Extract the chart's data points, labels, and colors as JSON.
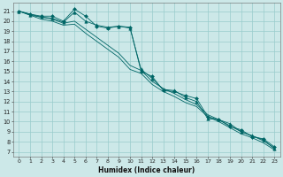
{
  "xlabel": "Humidex (Indice chaleur)",
  "ylabel": "",
  "bg_color": "#cce8e8",
  "grid_color": "#99cccc",
  "line_color": "#006666",
  "xlim": [
    -0.5,
    23.5
  ],
  "ylim": [
    6.5,
    21.8
  ],
  "yticks": [
    7,
    8,
    9,
    10,
    11,
    12,
    13,
    14,
    15,
    16,
    17,
    18,
    19,
    20,
    21
  ],
  "xticks": [
    0,
    1,
    2,
    3,
    4,
    5,
    6,
    7,
    8,
    9,
    10,
    11,
    12,
    13,
    14,
    15,
    16,
    17,
    18,
    19,
    20,
    21,
    22,
    23
  ],
  "series": [
    {
      "x": [
        0,
        1,
        2,
        3,
        4,
        5,
        6,
        7,
        8,
        9,
        10,
        11,
        12,
        13,
        14,
        15,
        16,
        17,
        18,
        19,
        20,
        21,
        22,
        23
      ],
      "y": [
        21.0,
        20.7,
        20.5,
        20.5,
        20.0,
        21.2,
        20.5,
        19.5,
        19.3,
        19.5,
        19.4,
        15.0,
        14.5,
        13.1,
        13.0,
        12.6,
        12.3,
        10.5,
        10.2,
        9.5,
        9.2,
        8.5,
        8.3,
        7.5
      ],
      "marker": "D",
      "markersize": 2.0
    },
    {
      "x": [
        0,
        1,
        2,
        3,
        4,
        5,
        6,
        7,
        8,
        9,
        10,
        11,
        12,
        13,
        14,
        15,
        16,
        17,
        18,
        19,
        20,
        21,
        22,
        23
      ],
      "y": [
        21.0,
        20.6,
        20.4,
        20.3,
        19.9,
        20.9,
        20.0,
        19.6,
        19.4,
        19.5,
        19.3,
        15.2,
        14.3,
        13.2,
        13.1,
        12.4,
        12.0,
        10.3,
        10.2,
        9.8,
        9.0,
        8.6,
        8.2,
        7.3
      ],
      "marker": "^",
      "markersize": 2.5
    },
    {
      "x": [
        0,
        1,
        2,
        3,
        4,
        5,
        6,
        7,
        8,
        9,
        10,
        11,
        12,
        13,
        14,
        15,
        16,
        17,
        18,
        19,
        20,
        21,
        22,
        23
      ],
      "y": [
        21.0,
        20.7,
        20.4,
        20.2,
        19.8,
        20.0,
        19.2,
        18.4,
        17.6,
        16.8,
        15.6,
        15.1,
        14.0,
        13.3,
        12.8,
        12.2,
        11.7,
        10.7,
        10.2,
        9.6,
        9.0,
        8.6,
        8.1,
        7.4
      ],
      "marker": null,
      "markersize": 0
    },
    {
      "x": [
        0,
        1,
        2,
        3,
        4,
        5,
        6,
        7,
        8,
        9,
        10,
        11,
        12,
        13,
        14,
        15,
        16,
        17,
        18,
        19,
        20,
        21,
        22,
        23
      ],
      "y": [
        21.0,
        20.6,
        20.2,
        20.0,
        19.6,
        19.7,
        18.8,
        18.0,
        17.2,
        16.4,
        15.2,
        14.8,
        13.7,
        13.0,
        12.5,
        11.9,
        11.5,
        10.5,
        10.0,
        9.4,
        8.8,
        8.4,
        7.9,
        7.2
      ],
      "marker": null,
      "markersize": 0
    }
  ]
}
